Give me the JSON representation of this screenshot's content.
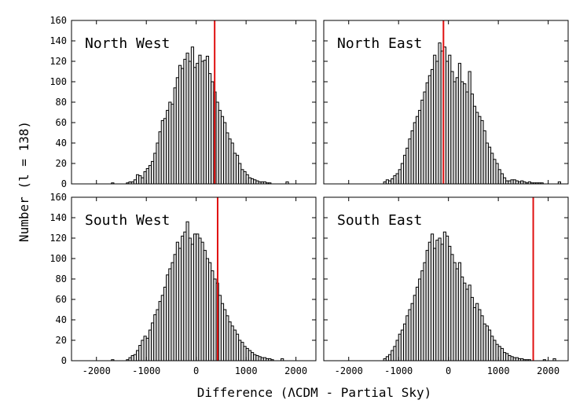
{
  "figure": {
    "xlabel": "Difference (ΛCDM - Partial Sky)",
    "ylabel": "Number (l = 138)"
  },
  "colors": {
    "bar_fill": "#e6e6e6",
    "bar_edge": "#000000",
    "marker": "#e01010",
    "background": "#ffffff"
  },
  "chart_data": [
    {
      "type": "bar",
      "title": "North West",
      "xlim": [
        -2500,
        2400
      ],
      "ylim": [
        0,
        160
      ],
      "x_ticks": [
        -2000,
        -1000,
        0,
        1000,
        2000
      ],
      "y_ticks": [
        0,
        20,
        40,
        60,
        80,
        100,
        120,
        140,
        160
      ],
      "bin_width": 50,
      "bin_left": [
        -1700,
        -1650,
        -1600,
        -1550,
        -1500,
        -1450,
        -1400,
        -1350,
        -1300,
        -1250,
        -1200,
        -1150,
        -1100,
        -1050,
        -1000,
        -950,
        -900,
        -850,
        -800,
        -750,
        -700,
        -650,
        -600,
        -550,
        -500,
        -450,
        -400,
        -350,
        -300,
        -250,
        -200,
        -150,
        -100,
        -50,
        0,
        50,
        100,
        150,
        200,
        250,
        300,
        350,
        400,
        450,
        500,
        550,
        600,
        650,
        700,
        750,
        800,
        850,
        900,
        950,
        1000,
        1050,
        1100,
        1150,
        1200,
        1250,
        1300,
        1350,
        1400,
        1450,
        1500,
        1550,
        1600,
        1650,
        1700,
        1750,
        1800
      ],
      "values": [
        1,
        0,
        0,
        0,
        0,
        0,
        1,
        2,
        2,
        4,
        9,
        8,
        6,
        12,
        15,
        18,
        22,
        30,
        40,
        51,
        62,
        64,
        72,
        80,
        78,
        94,
        104,
        116,
        113,
        122,
        128,
        120,
        134,
        114,
        118,
        126,
        120,
        121,
        125,
        108,
        100,
        90,
        80,
        72,
        66,
        60,
        50,
        44,
        40,
        30,
        28,
        20,
        14,
        12,
        9,
        6,
        5,
        4,
        3,
        2,
        2,
        2,
        1,
        1,
        0,
        0,
        0,
        0,
        0,
        0,
        2
      ],
      "marker_x": 370
    },
    {
      "type": "bar",
      "title": "North East",
      "xlim": [
        -2500,
        2400
      ],
      "ylim": [
        0,
        160
      ],
      "x_ticks": [
        -2000,
        -1000,
        0,
        1000,
        2000
      ],
      "y_ticks": [
        0,
        20,
        40,
        60,
        80,
        100,
        120,
        140,
        160
      ],
      "bin_width": 50,
      "bin_left": [
        -1300,
        -1250,
        -1200,
        -1150,
        -1100,
        -1050,
        -1000,
        -950,
        -900,
        -850,
        -800,
        -750,
        -700,
        -650,
        -600,
        -550,
        -500,
        -450,
        -400,
        -350,
        -300,
        -250,
        -200,
        -150,
        -100,
        -50,
        0,
        50,
        100,
        150,
        200,
        250,
        300,
        350,
        400,
        450,
        500,
        550,
        600,
        650,
        700,
        750,
        800,
        850,
        900,
        950,
        1000,
        1050,
        1100,
        1150,
        1200,
        1250,
        1300,
        1350,
        1400,
        1450,
        1500,
        1550,
        1600,
        1650,
        1700,
        1750,
        1800,
        1850,
        1900,
        1950,
        2000,
        2050,
        2100,
        2150,
        2200
      ],
      "values": [
        2,
        4,
        3,
        5,
        8,
        10,
        14,
        20,
        28,
        35,
        44,
        52,
        60,
        66,
        72,
        82,
        90,
        99,
        106,
        112,
        126,
        120,
        138,
        130,
        134,
        120,
        126,
        110,
        100,
        104,
        118,
        100,
        98,
        90,
        110,
        88,
        76,
        70,
        66,
        62,
        52,
        40,
        36,
        30,
        24,
        20,
        14,
        10,
        6,
        3,
        3,
        4,
        4,
        3,
        2,
        3,
        2,
        1,
        2,
        1,
        1,
        1,
        1,
        1,
        0,
        0,
        0,
        0,
        0,
        0,
        2
      ],
      "marker_x": -100
    },
    {
      "type": "bar",
      "title": "South West",
      "xlim": [
        -2500,
        2400
      ],
      "ylim": [
        0,
        160
      ],
      "x_ticks": [
        -2000,
        -1000,
        0,
        1000,
        2000
      ],
      "y_ticks": [
        0,
        20,
        40,
        60,
        80,
        100,
        120,
        140,
        160
      ],
      "bin_width": 50,
      "bin_left": [
        -1700,
        -1650,
        -1600,
        -1550,
        -1500,
        -1450,
        -1400,
        -1350,
        -1300,
        -1250,
        -1200,
        -1150,
        -1100,
        -1050,
        -1000,
        -950,
        -900,
        -850,
        -800,
        -750,
        -700,
        -650,
        -600,
        -550,
        -500,
        -450,
        -400,
        -350,
        -300,
        -250,
        -200,
        -150,
        -100,
        -50,
        0,
        50,
        100,
        150,
        200,
        250,
        300,
        350,
        400,
        450,
        500,
        550,
        600,
        650,
        700,
        750,
        800,
        850,
        900,
        950,
        1000,
        1050,
        1100,
        1150,
        1200,
        1250,
        1300,
        1350,
        1400,
        1450,
        1500,
        1550,
        1600,
        1650,
        1700
      ],
      "values": [
        1,
        0,
        0,
        0,
        0,
        0,
        1,
        3,
        5,
        6,
        10,
        15,
        20,
        24,
        22,
        30,
        37,
        45,
        50,
        58,
        64,
        72,
        84,
        90,
        96,
        104,
        116,
        110,
        122,
        126,
        136,
        120,
        114,
        124,
        124,
        120,
        116,
        108,
        100,
        96,
        88,
        80,
        76,
        64,
        56,
        50,
        44,
        38,
        34,
        30,
        26,
        20,
        18,
        14,
        12,
        10,
        8,
        6,
        5,
        4,
        3,
        3,
        2,
        2,
        1,
        0,
        0,
        0,
        2
      ],
      "marker_x": 430
    },
    {
      "type": "bar",
      "title": "South East",
      "xlim": [
        -2500,
        2400
      ],
      "ylim": [
        0,
        160
      ],
      "x_ticks": [
        -2000,
        -1000,
        0,
        1000,
        2000
      ],
      "y_ticks": [
        0,
        20,
        40,
        60,
        80,
        100,
        120,
        140,
        160
      ],
      "bin_width": 50,
      "bin_left": [
        -1300,
        -1250,
        -1200,
        -1150,
        -1100,
        -1050,
        -1000,
        -950,
        -900,
        -850,
        -800,
        -750,
        -700,
        -650,
        -600,
        -550,
        -500,
        -450,
        -400,
        -350,
        -300,
        -250,
        -200,
        -150,
        -100,
        -50,
        0,
        50,
        100,
        150,
        200,
        250,
        300,
        350,
        400,
        450,
        500,
        550,
        600,
        650,
        700,
        750,
        800,
        850,
        900,
        950,
        1000,
        1050,
        1100,
        1150,
        1200,
        1250,
        1300,
        1350,
        1400,
        1450,
        1500,
        1550,
        1600,
        1650,
        1700,
        1750,
        1800,
        1850,
        1900,
        1950,
        2000,
        2050,
        2100
      ],
      "values": [
        2,
        4,
        6,
        10,
        14,
        20,
        26,
        30,
        36,
        44,
        50,
        56,
        64,
        72,
        80,
        88,
        96,
        108,
        116,
        124,
        110,
        118,
        120,
        114,
        126,
        122,
        112,
        104,
        96,
        90,
        96,
        82,
        76,
        70,
        74,
        62,
        52,
        56,
        50,
        44,
        36,
        34,
        30,
        24,
        20,
        16,
        14,
        12,
        8,
        7,
        5,
        4,
        3,
        3,
        2,
        2,
        1,
        1,
        1,
        0,
        0,
        0,
        0,
        0,
        1,
        0,
        0,
        0,
        2
      ],
      "marker_x": 1700
    }
  ]
}
